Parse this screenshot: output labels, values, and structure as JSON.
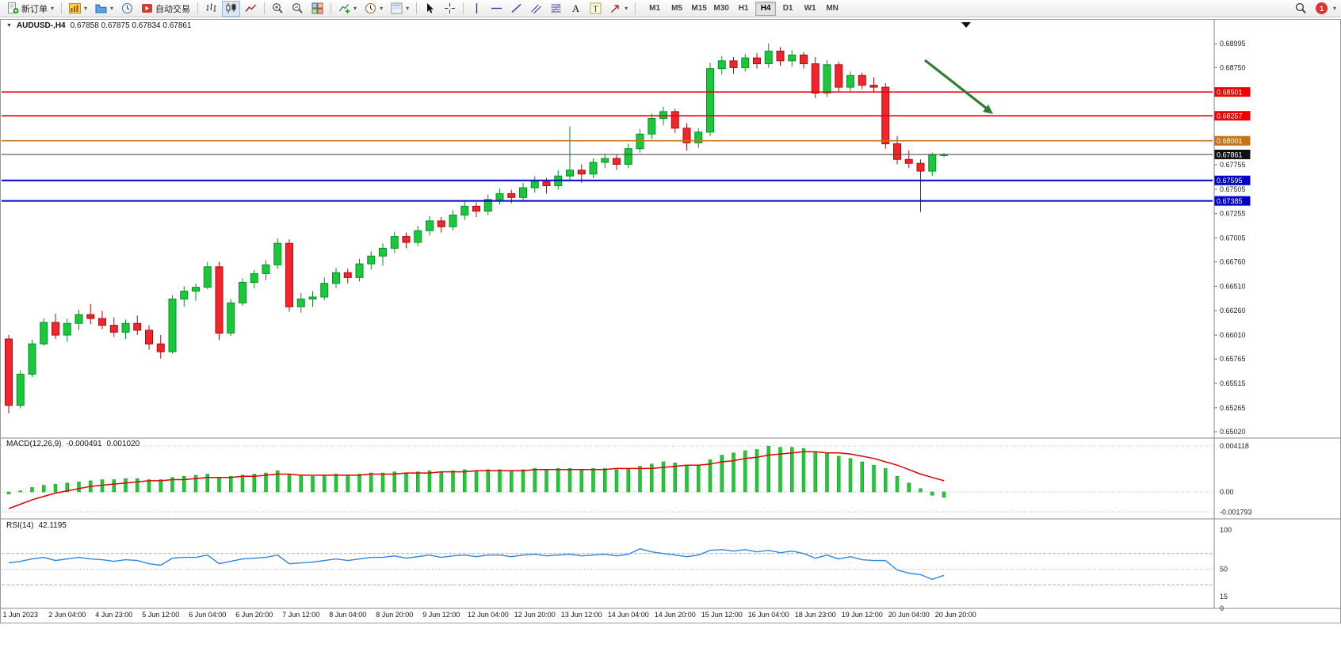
{
  "toolbar": {
    "buttons": [
      {
        "name": "new-order",
        "icon": "new-order",
        "label": "新订单",
        "dropdown": true
      },
      {
        "type": "sep"
      },
      {
        "name": "new-chart",
        "icon": "new-chart",
        "dropdown": true
      },
      {
        "name": "profiles",
        "icon": "profiles",
        "dropdown": true
      },
      {
        "name": "market-watch",
        "icon": "market-watch"
      },
      {
        "name": "autotrading",
        "icon": "autotrading",
        "label": "自动交易"
      },
      {
        "type": "sep"
      },
      {
        "name": "bars-chart",
        "icon": "bars"
      },
      {
        "name": "candles-chart",
        "icon": "candles",
        "active": true
      },
      {
        "name": "line-chart",
        "icon": "line"
      },
      {
        "type": "sep"
      },
      {
        "name": "zoom-in",
        "icon": "zoom-in"
      },
      {
        "name": "zoom-out",
        "icon": "zoom-out"
      },
      {
        "name": "tile-windows",
        "icon": "tile"
      },
      {
        "type": "sep"
      },
      {
        "name": "indicators",
        "icon": "indicators",
        "dropdown": true
      },
      {
        "name": "periods",
        "icon": "clock",
        "dropdown": true
      },
      {
        "name": "templates",
        "icon": "template",
        "dropdown": true
      },
      {
        "type": "sep"
      },
      {
        "name": "cursor",
        "icon": "cursor"
      },
      {
        "name": "crosshair",
        "icon": "crosshair"
      },
      {
        "type": "sep"
      },
      {
        "name": "vertical-line",
        "icon": "vline"
      },
      {
        "name": "horizontal-line",
        "icon": "hline"
      },
      {
        "name": "trendline",
        "icon": "trend"
      },
      {
        "name": "equidistant-channel",
        "icon": "channel"
      },
      {
        "name": "fibonacci",
        "icon": "fibo"
      },
      {
        "name": "text",
        "icon": "textA"
      },
      {
        "name": "text-label",
        "icon": "textT"
      },
      {
        "name": "arrows",
        "icon": "arrow-tool",
        "dropdown": true
      },
      {
        "type": "sep"
      }
    ],
    "timeframes": [
      "M1",
      "M5",
      "M15",
      "M30",
      "H1",
      "H4",
      "D1",
      "W1",
      "MN"
    ],
    "active_timeframe": "H4",
    "notification_count": "1"
  },
  "icons": {
    "collapse": "▼",
    "overflow": "▾"
  },
  "chart": {
    "title": "AUDUSD-,H4",
    "ohlc": "0.67858 0.67875 0.67834 0.67861"
  },
  "price_scale": {
    "labels": [
      {
        "price": 0.68995,
        "text": "0.68995"
      },
      {
        "price": 0.6875,
        "text": "0.68750"
      },
      {
        "price": 0.67755,
        "text": "0.67755"
      },
      {
        "price": 0.67505,
        "text": "0.67505"
      },
      {
        "price": 0.67255,
        "text": "0.67255"
      },
      {
        "price": 0.67005,
        "text": "0.67005"
      },
      {
        "price": 0.6676,
        "text": "0.66760"
      },
      {
        "price": 0.6651,
        "text": "0.66510"
      },
      {
        "price": 0.6626,
        "text": "0.66260"
      },
      {
        "price": 0.6601,
        "text": "0.66010"
      },
      {
        "price": 0.65765,
        "text": "0.65765"
      },
      {
        "price": 0.65515,
        "text": "0.65515"
      },
      {
        "price": 0.65265,
        "text": "0.65265"
      },
      {
        "price": 0.6502,
        "text": "0.65020"
      }
    ]
  },
  "levels": [
    {
      "name": "resistance-line-1",
      "price": 0.68501,
      "text": "0.68501",
      "color": "#ee0000",
      "badge": "#ee0000",
      "width": 1.6
    },
    {
      "name": "resistance-line-2",
      "price": 0.68257,
      "text": "0.68257",
      "color": "#ee0000",
      "badge": "#ee0000",
      "width": 1.6
    },
    {
      "name": "pivot-line",
      "price": 0.68001,
      "text": "0.68001",
      "color": "#c87414",
      "badge": "#c87414",
      "width": 1.6
    },
    {
      "name": "current-price-line",
      "price": 0.67861,
      "text": "0.67861",
      "color": "#3a3a3a",
      "badge": "#101010",
      "width": 1
    },
    {
      "name": "support-line-1",
      "price": 0.67595,
      "text": "0.67595",
      "color": "#0000cc",
      "badge": "#0000cc",
      "width": 2
    },
    {
      "name": "support-line-2",
      "price": 0.67385,
      "text": "0.67385",
      "color": "#0000cc",
      "badge": "#0000cc",
      "width": 2
    }
  ],
  "annotation": {
    "color": "#2e7d32",
    "from": [
      1167,
      54
    ],
    "to": [
      1253,
      122
    ]
  },
  "colors": {
    "up": "#1ac93a",
    "up_stroke": "#0a8f26",
    "down": "#f1252b",
    "down_stroke": "#a80d12",
    "macd_hist": "#23c934",
    "macd_hist_stroke": "#109a22",
    "macd_signal": "#e00000",
    "rsi_line": "#2e86de",
    "arrow": "#2e7d32"
  },
  "chart_data": {
    "type": "candlestick",
    "symbol": "AUDUSD",
    "timeframe": "H4",
    "ohlc_current": {
      "open": 0.67858,
      "high": 0.67875,
      "low": 0.67834,
      "close": 0.67861
    },
    "candles": [
      [
        0.6597,
        0.6601,
        0.6521,
        0.6529
      ],
      [
        0.6529,
        0.6565,
        0.6526,
        0.6561
      ],
      [
        0.6561,
        0.6596,
        0.6558,
        0.6592
      ],
      [
        0.6592,
        0.6618,
        0.659,
        0.6614
      ],
      [
        0.6614,
        0.6623,
        0.6597,
        0.6601
      ],
      [
        0.6601,
        0.6618,
        0.6594,
        0.6613
      ],
      [
        0.6613,
        0.6627,
        0.6606,
        0.6622
      ],
      [
        0.6622,
        0.6633,
        0.6612,
        0.6618
      ],
      [
        0.6618,
        0.6626,
        0.6607,
        0.6611
      ],
      [
        0.6611,
        0.6619,
        0.6599,
        0.6604
      ],
      [
        0.6604,
        0.6617,
        0.6597,
        0.6613
      ],
      [
        0.6613,
        0.6621,
        0.6601,
        0.6606
      ],
      [
        0.6606,
        0.6611,
        0.6586,
        0.6592
      ],
      [
        0.6592,
        0.6601,
        0.6577,
        0.6584
      ],
      [
        0.6584,
        0.6642,
        0.6582,
        0.6638
      ],
      [
        0.6638,
        0.6651,
        0.663,
        0.6646
      ],
      [
        0.6646,
        0.6654,
        0.6636,
        0.665
      ],
      [
        0.665,
        0.6676,
        0.6648,
        0.6671
      ],
      [
        0.6671,
        0.6676,
        0.6596,
        0.6603
      ],
      [
        0.6603,
        0.6638,
        0.66,
        0.6634
      ],
      [
        0.6634,
        0.6659,
        0.6631,
        0.6655
      ],
      [
        0.6655,
        0.6668,
        0.6649,
        0.6664
      ],
      [
        0.6664,
        0.6678,
        0.6657,
        0.6673
      ],
      [
        0.6673,
        0.67,
        0.6669,
        0.6695
      ],
      [
        0.6695,
        0.6699,
        0.6625,
        0.663
      ],
      [
        0.663,
        0.6644,
        0.6624,
        0.6638
      ],
      [
        0.6638,
        0.6646,
        0.663,
        0.664
      ],
      [
        0.664,
        0.666,
        0.6637,
        0.6654
      ],
      [
        0.6654,
        0.667,
        0.6649,
        0.6665
      ],
      [
        0.6665,
        0.6669,
        0.6654,
        0.666
      ],
      [
        0.666,
        0.6679,
        0.6656,
        0.6674
      ],
      [
        0.6674,
        0.6687,
        0.6668,
        0.6682
      ],
      [
        0.6682,
        0.6695,
        0.6672,
        0.669
      ],
      [
        0.669,
        0.6707,
        0.6685,
        0.6702
      ],
      [
        0.6702,
        0.6706,
        0.669,
        0.6696
      ],
      [
        0.6696,
        0.6713,
        0.6692,
        0.6708
      ],
      [
        0.6708,
        0.6723,
        0.6703,
        0.6718
      ],
      [
        0.6718,
        0.6722,
        0.6706,
        0.6712
      ],
      [
        0.6712,
        0.6729,
        0.6708,
        0.6724
      ],
      [
        0.6724,
        0.6738,
        0.6719,
        0.6733
      ],
      [
        0.6733,
        0.6737,
        0.6722,
        0.6728
      ],
      [
        0.6728,
        0.6745,
        0.6724,
        0.674
      ],
      [
        0.674,
        0.6751,
        0.6735,
        0.6746
      ],
      [
        0.6746,
        0.675,
        0.6736,
        0.6742
      ],
      [
        0.6742,
        0.6757,
        0.6738,
        0.6752
      ],
      [
        0.6752,
        0.6764,
        0.6747,
        0.6758
      ],
      [
        0.6758,
        0.6762,
        0.6746,
        0.6754
      ],
      [
        0.6754,
        0.677,
        0.675,
        0.6764
      ],
      [
        0.6764,
        0.6815,
        0.676,
        0.677
      ],
      [
        0.677,
        0.6776,
        0.6757,
        0.6766
      ],
      [
        0.6766,
        0.6782,
        0.6762,
        0.6778
      ],
      [
        0.6778,
        0.6787,
        0.6772,
        0.6782
      ],
      [
        0.6782,
        0.6786,
        0.677,
        0.6776
      ],
      [
        0.6776,
        0.6797,
        0.6772,
        0.6792
      ],
      [
        0.6792,
        0.6812,
        0.6788,
        0.6807
      ],
      [
        0.6807,
        0.6828,
        0.6802,
        0.6823
      ],
      [
        0.6823,
        0.6835,
        0.6816,
        0.683
      ],
      [
        0.683,
        0.6833,
        0.6808,
        0.6813
      ],
      [
        0.6813,
        0.6818,
        0.679,
        0.6798
      ],
      [
        0.6798,
        0.6813,
        0.6793,
        0.6809
      ],
      [
        0.6809,
        0.688,
        0.6805,
        0.6874
      ],
      [
        0.6874,
        0.6887,
        0.6868,
        0.6882
      ],
      [
        0.6882,
        0.6886,
        0.6869,
        0.6875
      ],
      [
        0.6875,
        0.6889,
        0.6871,
        0.6885
      ],
      [
        0.6885,
        0.689,
        0.6874,
        0.6879
      ],
      [
        0.6879,
        0.69,
        0.6875,
        0.6892
      ],
      [
        0.6892,
        0.6896,
        0.6877,
        0.6882
      ],
      [
        0.6882,
        0.6893,
        0.6876,
        0.6888
      ],
      [
        0.6888,
        0.6891,
        0.6874,
        0.6879
      ],
      [
        0.6879,
        0.6886,
        0.6844,
        0.6849
      ],
      [
        0.6849,
        0.6883,
        0.6845,
        0.6878
      ],
      [
        0.6878,
        0.6881,
        0.685,
        0.6855
      ],
      [
        0.6855,
        0.6871,
        0.685,
        0.6867
      ],
      [
        0.6867,
        0.687,
        0.6853,
        0.6857
      ],
      [
        0.6857,
        0.6865,
        0.685,
        0.6855
      ],
      [
        0.6855,
        0.6859,
        0.6792,
        0.6797
      ],
      [
        0.6797,
        0.6805,
        0.6776,
        0.6781
      ],
      [
        0.6781,
        0.679,
        0.6772,
        0.6777
      ],
      [
        0.6777,
        0.6781,
        0.6727,
        0.6769
      ],
      [
        0.6769,
        0.6788,
        0.6764,
        0.67858
      ],
      [
        0.67858,
        0.67875,
        0.67834,
        0.67861
      ]
    ],
    "time_labels": [
      {
        "index": 1,
        "text": "1 Jun 2023"
      },
      {
        "index": 5,
        "text": "2 Jun 04:00"
      },
      {
        "index": 9,
        "text": "4 Jun 23:00"
      },
      {
        "index": 13,
        "text": "5 Jun 12:00"
      },
      {
        "index": 17,
        "text": "6 Jun 04:00"
      },
      {
        "index": 21,
        "text": "6 Jun 20:00"
      },
      {
        "index": 25,
        "text": "7 Jun 12:00"
      },
      {
        "index": 29,
        "text": "8 Jun 04:00"
      },
      {
        "index": 33,
        "text": "8 Jun 20:00"
      },
      {
        "index": 37,
        "text": "9 Jun 12:00"
      },
      {
        "index": 41,
        "text": "12 Jun 04:00"
      },
      {
        "index": 45,
        "text": "12 Jun 20:00"
      },
      {
        "index": 49,
        "text": "13 Jun 12:00"
      },
      {
        "index": 53,
        "text": "14 Jun 04:00"
      },
      {
        "index": 57,
        "text": "14 Jun 20:00"
      },
      {
        "index": 61,
        "text": "15 Jun 12:00"
      },
      {
        "index": 65,
        "text": "16 Jun 04:00"
      },
      {
        "index": 69,
        "text": "18 Jun 23:00"
      },
      {
        "index": 73,
        "text": "19 Jun 12:00"
      },
      {
        "index": 77,
        "text": "20 Jun 04:00"
      },
      {
        "index": 81,
        "text": "20 Jun 20:00"
      }
    ],
    "indicators": {
      "macd": {
        "name": "MACD(12,26,9)",
        "main_value": "-0.000491",
        "signal_value": "0.001020",
        "scale_labels": [
          "0.004118",
          "0.00",
          "-0.001793"
        ],
        "scale_values": [
          0.004118,
          0,
          -0.001793
        ],
        "histogram": [
          -0.0002,
          0.0001,
          0.0004,
          0.0006,
          0.0007,
          0.0008,
          0.0009,
          0.001,
          0.0011,
          0.0011,
          0.0012,
          0.0012,
          0.0011,
          0.0011,
          0.0013,
          0.0014,
          0.0015,
          0.0016,
          0.0013,
          0.0014,
          0.0015,
          0.0016,
          0.0017,
          0.0019,
          0.0016,
          0.0015,
          0.0014,
          0.0015,
          0.0016,
          0.0015,
          0.0016,
          0.0017,
          0.0017,
          0.0018,
          0.0017,
          0.0018,
          0.0019,
          0.0018,
          0.0019,
          0.002,
          0.0019,
          0.002,
          0.002,
          0.0019,
          0.002,
          0.0021,
          0.002,
          0.0021,
          0.0021,
          0.002,
          0.0021,
          0.0021,
          0.002,
          0.0021,
          0.0023,
          0.0025,
          0.0027,
          0.0026,
          0.0024,
          0.0024,
          0.0029,
          0.0033,
          0.0035,
          0.0037,
          0.0038,
          0.0041,
          0.004,
          0.004,
          0.0039,
          0.0036,
          0.0035,
          0.0032,
          0.003,
          0.0027,
          0.0024,
          0.0021,
          0.0014,
          0.0008,
          0.0003,
          -0.0003,
          -0.00049
        ],
        "signal": [
          -0.0015,
          -0.0011,
          -0.0007,
          -0.0004,
          -0.0001,
          0.0001,
          0.0003,
          0.0005,
          0.0006,
          0.0007,
          0.0008,
          0.0009,
          0.001,
          0.001,
          0.0011,
          0.0011,
          0.0012,
          0.0013,
          0.0013,
          0.0013,
          0.0014,
          0.0014,
          0.0015,
          0.0016,
          0.0016,
          0.0015,
          0.0015,
          0.0015,
          0.0015,
          0.0015,
          0.0015,
          0.0016,
          0.0016,
          0.0016,
          0.0017,
          0.0017,
          0.0017,
          0.0018,
          0.0018,
          0.0018,
          0.0019,
          0.0019,
          0.0019,
          0.0019,
          0.0019,
          0.002,
          0.002,
          0.002,
          0.002,
          0.002,
          0.002,
          0.002,
          0.0021,
          0.0021,
          0.0021,
          0.0021,
          0.0022,
          0.0023,
          0.0024,
          0.0024,
          0.0025,
          0.0027,
          0.0028,
          0.003,
          0.0031,
          0.0033,
          0.0034,
          0.0035,
          0.0036,
          0.0036,
          0.0035,
          0.0035,
          0.0034,
          0.0032,
          0.003,
          0.0027,
          0.0024,
          0.002,
          0.0016,
          0.0013,
          0.001
        ]
      },
      "rsi": {
        "name": "RSI(14)",
        "value": "42.1195",
        "scale_labels": [
          {
            "v": 100,
            "text": "100"
          },
          {
            "v": 50,
            "text": "50"
          },
          {
            "v": 15,
            "text": "15"
          },
          {
            "v": 0,
            "text": "0"
          }
        ],
        "levels": [
          70,
          50,
          30
        ],
        "series": [
          58,
          60,
          63,
          65,
          61,
          63,
          65,
          63,
          62,
          60,
          62,
          61,
          57,
          55,
          64,
          65,
          65,
          68,
          57,
          60,
          63,
          64,
          65,
          68,
          57,
          58,
          59,
          61,
          63,
          61,
          63,
          65,
          65,
          67,
          64,
          66,
          68,
          65,
          67,
          68,
          66,
          68,
          68,
          66,
          68,
          69,
          67,
          68,
          69,
          67,
          68,
          69,
          67,
          69,
          76,
          72,
          70,
          68,
          66,
          68,
          74,
          75,
          73,
          75,
          72,
          74,
          71,
          73,
          70,
          64,
          68,
          63,
          66,
          62,
          61,
          61,
          49,
          45,
          43,
          37,
          42.1
        ]
      }
    }
  }
}
